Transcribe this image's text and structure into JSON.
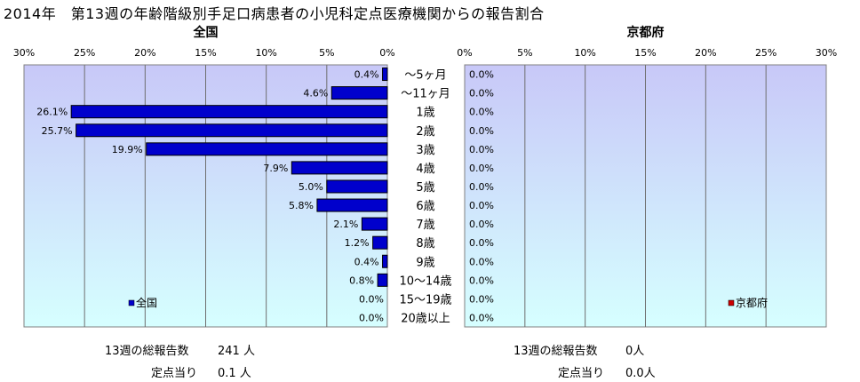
{
  "title": "2014年　第13週の年齢階級別手足口病患者の小児科定点医療機関からの報告割合",
  "categories": [
    "～5ヶ月",
    "～11ヶ月",
    "1歳",
    "2歳",
    "3歳",
    "4歳",
    "5歳",
    "6歳",
    "7歳",
    "8歳",
    "9歳",
    "10～14歳",
    "15～19歳",
    "20歳以上"
  ],
  "chart_data": [
    {
      "type": "bar",
      "title": "全国",
      "orientation": "horizontal-reversed",
      "categories": [
        "～5ヶ月",
        "～11ヶ月",
        "1歳",
        "2歳",
        "3歳",
        "4歳",
        "5歳",
        "6歳",
        "7歳",
        "8歳",
        "9歳",
        "10～14歳",
        "15～19歳",
        "20歳以上"
      ],
      "series": [
        {
          "name": "全国",
          "values": [
            0.4,
            4.6,
            26.1,
            25.7,
            19.9,
            7.9,
            5.0,
            5.8,
            2.1,
            1.2,
            0.4,
            0.8,
            0.0,
            0.0
          ],
          "color": "#0000cc"
        }
      ],
      "data_labels": [
        "0.4%",
        "4.6%",
        "26.1%",
        "25.7%",
        "19.9%",
        "7.9%",
        "5.0%",
        "5.8%",
        "2.1%",
        "1.2%",
        "0.4%",
        "0.8%",
        "0.0%",
        "0.0%"
      ],
      "xlim": [
        0,
        30
      ],
      "ticks": [
        "30%",
        "25%",
        "20%",
        "15%",
        "10%",
        "5%",
        "0%"
      ],
      "grid": "vertical",
      "legend": "bottom-left"
    },
    {
      "type": "bar",
      "title": "京都府",
      "orientation": "horizontal",
      "categories": [
        "～5ヶ月",
        "～11ヶ月",
        "1歳",
        "2歳",
        "3歳",
        "4歳",
        "5歳",
        "6歳",
        "7歳",
        "8歳",
        "9歳",
        "10～14歳",
        "15～19歳",
        "20歳以上"
      ],
      "series": [
        {
          "name": "京都府",
          "values": [
            0.0,
            0.0,
            0.0,
            0.0,
            0.0,
            0.0,
            0.0,
            0.0,
            0.0,
            0.0,
            0.0,
            0.0,
            0.0,
            0.0
          ],
          "color": "#cc0000"
        }
      ],
      "data_labels": [
        "0.0%",
        "0.0%",
        "0.0%",
        "0.0%",
        "0.0%",
        "0.0%",
        "0.0%",
        "0.0%",
        "0.0%",
        "0.0%",
        "0.0%",
        "0.0%",
        "0.0%",
        "0.0%"
      ],
      "xlim": [
        0,
        30
      ],
      "ticks": [
        "0%",
        "5%",
        "10%",
        "15%",
        "20%",
        "25%",
        "30%"
      ],
      "grid": "vertical",
      "legend": "bottom-right"
    }
  ],
  "stats": {
    "left": {
      "total_label": "13週の総報告数",
      "total_value": "241 人",
      "per_label": "定点当り",
      "per_value": "0.1 人"
    },
    "right": {
      "total_label": "13週の総報告数",
      "total_value": "0人",
      "per_label": "定点当り",
      "per_value": "0.0人"
    }
  },
  "colors": {
    "bar_fill": "#0000cc",
    "bar_edge": "#000000",
    "legend_red": "#cc0000",
    "plot_top": "#c8c8f8",
    "plot_bottom": "#d6ffff",
    "grid": "#6f6f6f"
  }
}
